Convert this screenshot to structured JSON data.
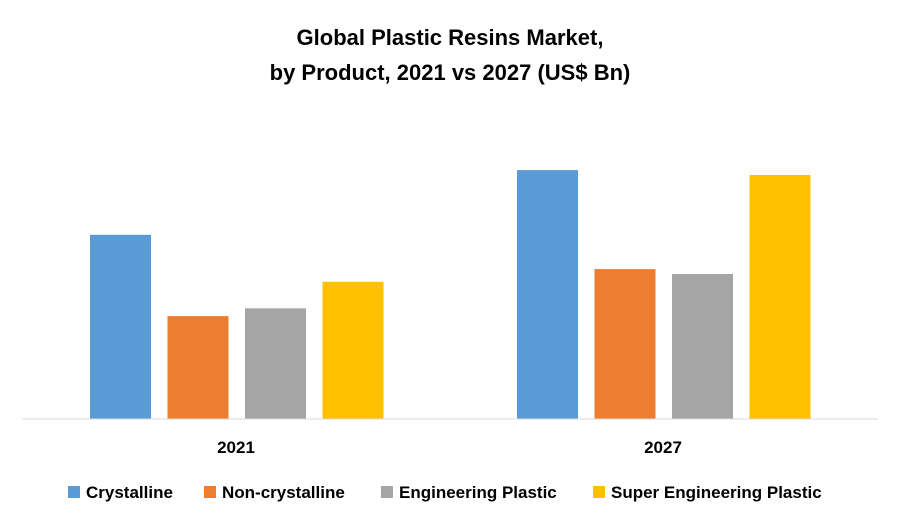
{
  "chart_data": {
    "type": "bar",
    "title_lines": [
      "Global Plastic Resins Market,",
      "by Product, 2021 vs 2027 (US$ Bn)"
    ],
    "xlabel": "",
    "ylabel": "",
    "categories": [
      "2021",
      "2027"
    ],
    "series": [
      {
        "name": "Crystalline",
        "color": "#5b9bd5",
        "values": [
          188,
          254
        ]
      },
      {
        "name": "Non-crystalline",
        "color": "#ed7d31",
        "values": [
          105,
          153
        ]
      },
      {
        "name": "Engineering Plastic",
        "color": "#a5a5a5",
        "values": [
          113,
          148
        ]
      },
      {
        "name": "Super Engineering Plastic",
        "color": "#ffc000",
        "values": [
          140,
          249
        ]
      }
    ],
    "ylim": [
      0,
      300
    ],
    "y_axis_visible": false,
    "grid": false,
    "legend_position": "bottom"
  }
}
